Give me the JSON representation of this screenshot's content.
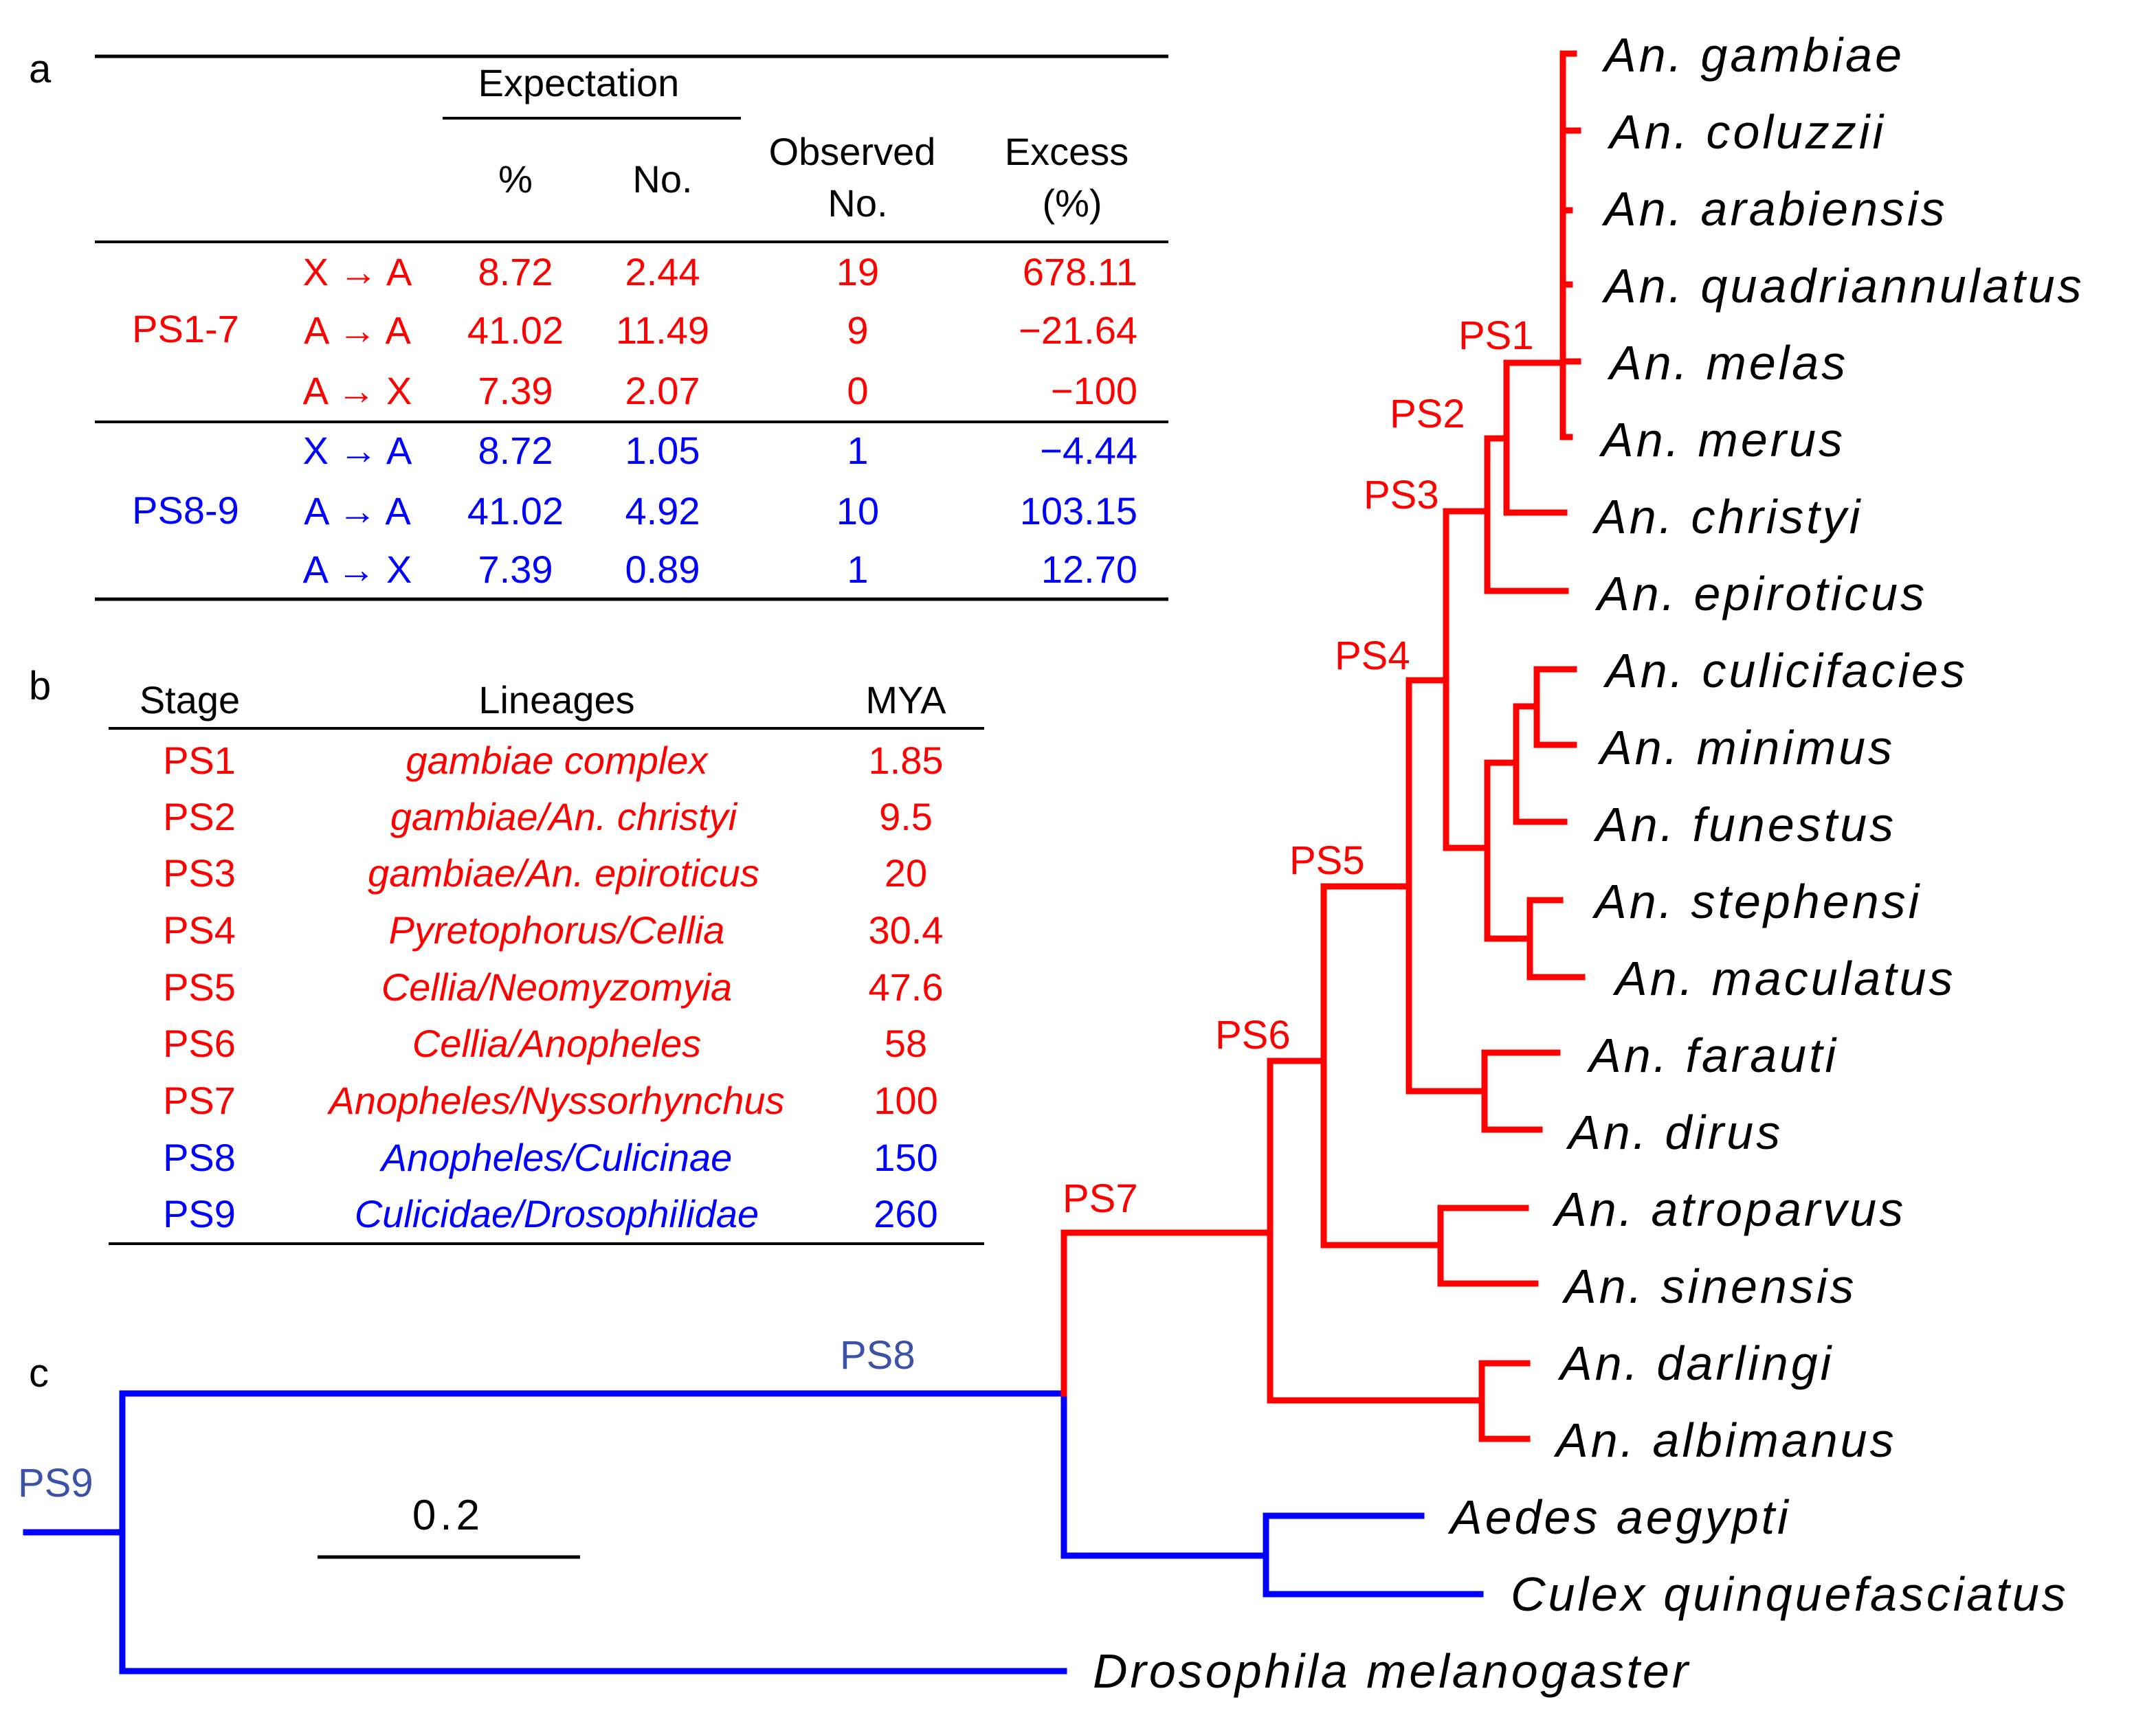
{
  "colors": {
    "red": "#ff0000",
    "blue": "#0000ff",
    "slate": "#3b52a8",
    "black": "#000000"
  },
  "panels": {
    "a": "a",
    "b": "b",
    "c": "c"
  },
  "table_a": {
    "expectation_header": "Expectation",
    "pct_header": "%",
    "no_header": "No.",
    "observed_header": [
      "Observed",
      "No."
    ],
    "excess_header": [
      "Excess",
      "(%)"
    ],
    "groups": [
      {
        "label": "PS1-7",
        "color": "red",
        "rows": [
          {
            "move": "X → A",
            "pct": "8.72",
            "no": "2.44",
            "obs": "19",
            "excess": "678.11"
          },
          {
            "move": "A → A",
            "pct": "41.02",
            "no": "11.49",
            "obs": "9",
            "excess": "−21.64"
          },
          {
            "move": "A → X",
            "pct": "7.39",
            "no": "2.07",
            "obs": "0",
            "excess": "−100"
          }
        ]
      },
      {
        "label": "PS8-9",
        "color": "blue",
        "rows": [
          {
            "move": "X → A",
            "pct": "8.72",
            "no": "1.05",
            "obs": "1",
            "excess": "−4.44"
          },
          {
            "move": "A → A",
            "pct": "41.02",
            "no": "4.92",
            "obs": "10",
            "excess": "103.15"
          },
          {
            "move": "A → X",
            "pct": "7.39",
            "no": "0.89",
            "obs": "1",
            "excess": "12.70"
          }
        ]
      }
    ]
  },
  "table_b": {
    "headers": {
      "stage": "Stage",
      "lineages": "Lineages",
      "mya": "MYA"
    },
    "rows": [
      {
        "stage": "PS1",
        "lineage": "gambiae complex",
        "mya": "1.85",
        "color": "red"
      },
      {
        "stage": "PS2",
        "lineage": "gambiae/An. christyi",
        "mya": "9.5",
        "color": "red"
      },
      {
        "stage": "PS3",
        "lineage": "gambiae/An. epiroticus",
        "mya": "20",
        "color": "red"
      },
      {
        "stage": "PS4",
        "lineage": "Pyretophorus/Cellia",
        "mya": "30.4",
        "color": "red"
      },
      {
        "stage": "PS5",
        "lineage": "Cellia/Neomyzomyia",
        "mya": "47.6",
        "color": "red"
      },
      {
        "stage": "PS6",
        "lineage": "Cellia/Anopheles",
        "mya": "58",
        "color": "red"
      },
      {
        "stage": "PS7",
        "lineage": "Anopheles/Nyssorhynchus",
        "mya": "100",
        "color": "red"
      },
      {
        "stage": "PS8",
        "lineage": "Anopheles/Culicinae",
        "mya": "150",
        "color": "blue"
      },
      {
        "stage": "PS9",
        "lineage": "Culicidae/Drosophilidae",
        "mya": "260",
        "color": "blue"
      }
    ]
  },
  "tree": {
    "scale_bar_label": "0.2",
    "node_labels": [
      "PS1",
      "PS2",
      "PS3",
      "PS4",
      "PS5",
      "PS6",
      "PS7",
      "PS8",
      "PS9"
    ],
    "taxa": [
      "An. gambiae",
      "An. coluzzii",
      "An. arabiensis",
      "An. quadriannulatus",
      "An. melas",
      "An. merus",
      "An. christyi",
      "An. epiroticus",
      "An. culicifacies",
      "An. minimus",
      "An. funestus",
      "An. stephensi",
      "An. maculatus",
      "An. farauti",
      "An. dirus",
      "An. atroparvus",
      "An. sinensis",
      "An. darlingi",
      "An. albimanus",
      "Aedes aegypti",
      "Culex quinquefasciatus",
      "Drosophila melanogaster"
    ]
  }
}
